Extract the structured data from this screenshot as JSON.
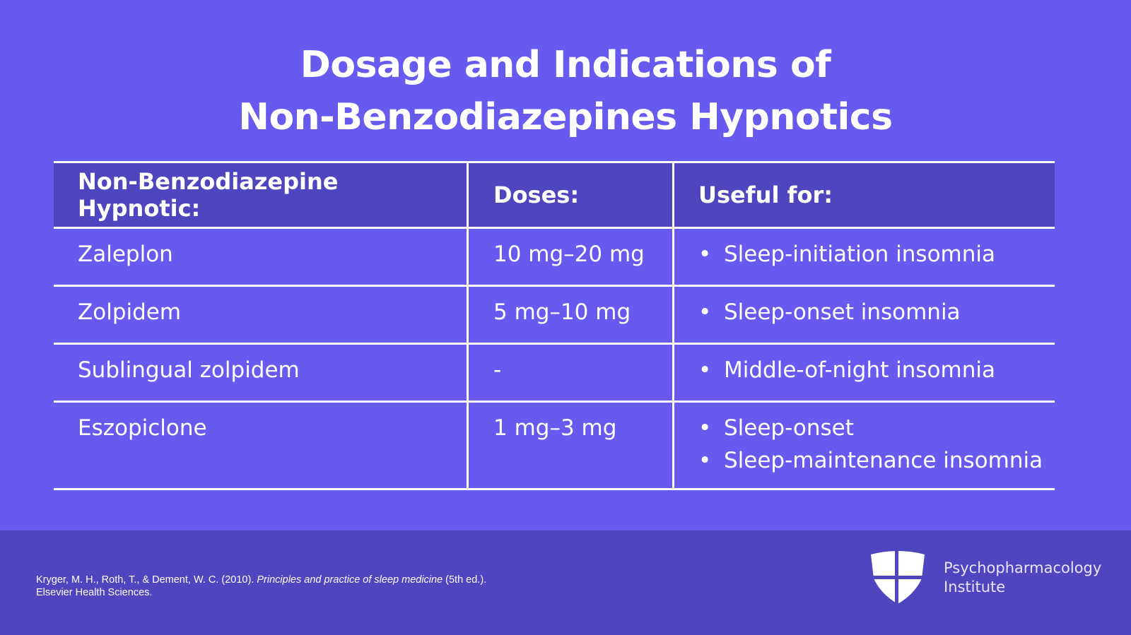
{
  "title": {
    "line1": "Dosage and Indications of",
    "line2": "Non-Benzodiazepines Hypnotics"
  },
  "table": {
    "headers": [
      "Non-Benzodiazepine Hypnotic:",
      "Doses:",
      "Useful for:"
    ],
    "rows": [
      {
        "drug": "Zaleplon",
        "dose": "10 mg–20 mg",
        "uses": [
          "Sleep-initiation insomnia"
        ]
      },
      {
        "drug": "Zolpidem",
        "dose": "5 mg–10 mg",
        "uses": [
          "Sleep-onset insomnia"
        ]
      },
      {
        "drug": "Sublingual zolpidem",
        "dose": "-",
        "uses": [
          "Middle-of-night insomnia"
        ]
      },
      {
        "drug": "Eszopiclone",
        "dose": "1 mg–3 mg",
        "uses": [
          "Sleep-onset",
          "Sleep-maintenance insomnia"
        ]
      }
    ]
  },
  "footer": {
    "citation_authors": "Kryger, M. H., Roth, T., & Dement, W. C. (2010). ",
    "citation_title": "Principles and practice of sleep medicine",
    "citation_edition": " (5th ed.).",
    "citation_publisher": "Elsevier Health Sciences.",
    "brand_line1": "Psychopharmacology",
    "brand_line2": "Institute",
    "logo_icon": "shield-cross-icon"
  },
  "colors": {
    "background": "#665bee",
    "header_row": "#4f45bf",
    "footer": "#4f45bf",
    "text": "#ffffff"
  }
}
